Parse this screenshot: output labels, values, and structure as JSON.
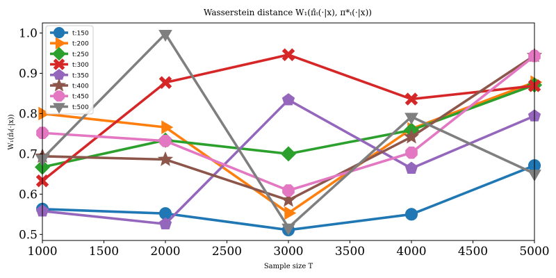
{
  "chart_data": {
    "type": "line",
    "title": "Wasserstein distance W₁(π̂ₜ(·|x), π*ₜ(·|x))",
    "xlabel": "Sample size T",
    "ylabel": "W₁(π̂ₜ(·|x))",
    "x": [
      1000,
      2000,
      3000,
      4000,
      5000
    ],
    "xlim": [
      1000,
      5000
    ],
    "ylim": [
      0.485,
      1.025
    ],
    "x_ticks": [
      1000,
      1500,
      2000,
      2500,
      3000,
      3500,
      4000,
      4500,
      5000
    ],
    "y_ticks": [
      0.5,
      0.6,
      0.7,
      0.8,
      0.9,
      1.0
    ],
    "y_tick_labels": [
      "0.5",
      "0.6",
      "0.7",
      "0.8",
      "0.9",
      "1.0"
    ],
    "grid": false,
    "legend_position": "top-left",
    "series": [
      {
        "name": "t:150",
        "values": [
          0.563,
          0.552,
          0.511,
          0.55,
          0.671
        ],
        "color": "#1f77b4",
        "marker": "circle"
      },
      {
        "name": "t:200",
        "values": [
          0.8,
          0.766,
          0.553,
          0.762,
          0.878
        ],
        "color": "#ff7f0e",
        "marker": "triangle-right"
      },
      {
        "name": "t:250",
        "values": [
          0.667,
          0.734,
          0.7,
          0.759,
          0.871
        ],
        "color": "#2ca02c",
        "marker": "diamond"
      },
      {
        "name": "t:300",
        "values": [
          0.633,
          0.877,
          0.946,
          0.836,
          0.869
        ],
        "color": "#d62728",
        "marker": "x-filled"
      },
      {
        "name": "t:350",
        "values": [
          0.558,
          0.526,
          0.834,
          0.664,
          0.794
        ],
        "color": "#9467bd",
        "marker": "pentagon"
      },
      {
        "name": "t:400",
        "values": [
          0.694,
          0.686,
          0.585,
          0.742,
          0.944
        ],
        "color": "#8c564b",
        "marker": "star"
      },
      {
        "name": "t:450",
        "values": [
          0.752,
          0.732,
          0.609,
          0.703,
          0.943
        ],
        "color": "#e377c2",
        "marker": "octagon"
      },
      {
        "name": "t:500",
        "values": [
          0.688,
          0.998,
          0.517,
          0.792,
          0.651
        ],
        "color": "#7f7f7f",
        "marker": "triangle-down"
      }
    ]
  }
}
